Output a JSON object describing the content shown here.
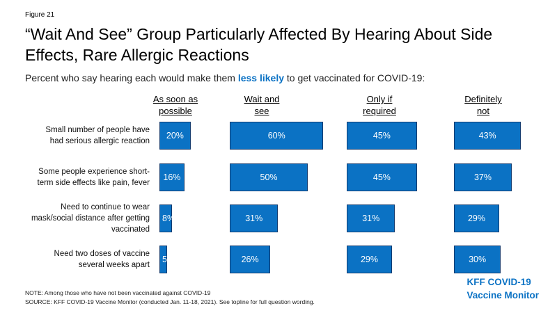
{
  "figure_label": "Figure 21",
  "subtitle": {
    "before": "Percent who say hearing each would make them ",
    "highlight": "less likely",
    "after": " to get vaccinated for COVID-19:"
  },
  "note": "NOTE: Among those who have not been vaccinated against COVID-19",
  "source": "SOURCE: KFF COVID-19 Vaccine Monitor (conducted Jan. 11-18, 2021). See topline for full question wording.",
  "logo": {
    "line1": "KFF COVID-19",
    "line2": "Vaccine Monitor"
  },
  "colors": {
    "bar": "#0b72c4",
    "accent": "#0b72c4"
  },
  "chart_data": {
    "type": "bar",
    "title": "“Wait And See” Group Particularly Affected By Hearing About Side Effects, Rare Allergic Reactions",
    "categories": [
      "Small number of people have had serious allergic reaction",
      "Some people experience short-term side effects like pain, fever",
      "Need to continue to wear mask/social distance after getting vaccinated",
      "Need two doses of vaccine several weeks apart"
    ],
    "category_lines": [
      [
        "Small number of people have",
        "had serious allergic reaction"
      ],
      [
        "Some people experience short-",
        "term side effects like pain, fever"
      ],
      [
        "Need to continue to wear",
        "mask/social distance after getting",
        "vaccinated"
      ],
      [
        "Need two doses of vaccine",
        "several weeks apart"
      ]
    ],
    "series": [
      {
        "name": "As soon as possible",
        "header_lines": [
          "As soon as",
          "possible"
        ],
        "values": [
          20,
          16,
          8,
          5
        ],
        "labels": [
          "20%",
          "16%",
          "8%",
          "5"
        ]
      },
      {
        "name": "Wait and see",
        "header_lines": [
          "Wait and",
          "see"
        ],
        "values": [
          60,
          50,
          31,
          26
        ],
        "labels": [
          "60%",
          "50%",
          "31%",
          "26%"
        ]
      },
      {
        "name": "Only if required",
        "header_lines": [
          "Only if",
          "required"
        ],
        "values": [
          45,
          45,
          31,
          29
        ],
        "labels": [
          "45%",
          "45%",
          "31%",
          "29%"
        ]
      },
      {
        "name": "Definitely not",
        "header_lines": [
          "Definitely",
          "not"
        ],
        "values": [
          43,
          37,
          29,
          30
        ],
        "labels": [
          "43%",
          "37%",
          "29%",
          "30%"
        ]
      }
    ],
    "unit": "%",
    "legend": "none",
    "grid": false
  }
}
